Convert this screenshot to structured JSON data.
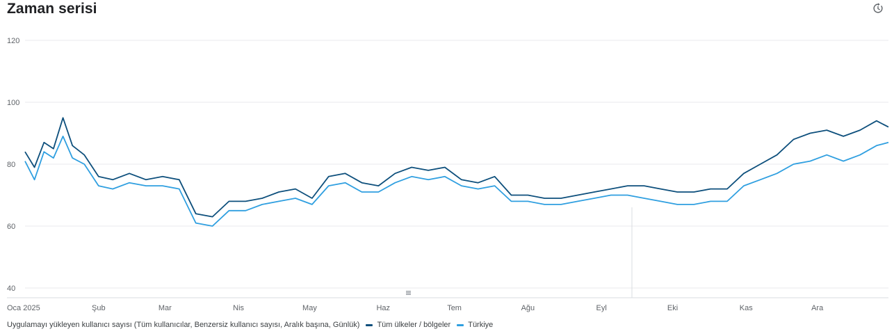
{
  "header": {
    "title": "Zaman serisi",
    "refresh_icon": "refresh-clock-icon"
  },
  "colors": {
    "series_all": "#0d4f7c",
    "series_tr": "#2f9fe0",
    "grid": "#e8eaed",
    "marker": "#dadce0"
  },
  "chart_data": {
    "type": "line",
    "title": "Zaman serisi",
    "metric": "Uygulamayı yükleyen kullanıcı sayısı (Tüm kullanıcılar, Benzersiz kullanıcı sayısı, Aralık başına, Günlük)",
    "x_ticks": [
      "Oca 2025",
      "Şub",
      "Mar",
      "Nis",
      "May",
      "Haz",
      "Tem",
      "Ağu",
      "Eyl",
      "Eki",
      "Kas",
      "Ara"
    ],
    "y_ticks": [
      40,
      60,
      80,
      100,
      120
    ],
    "ylim": [
      40,
      120
    ],
    "xlim": [
      "2025-01-01",
      "2025-12-31"
    ],
    "grid": true,
    "legend_position": "bottom",
    "series": [
      {
        "name": "Tüm ülkeler / bölgeler",
        "color": "#0d4f7c",
        "points": [
          [
            "2025-01-01",
            84
          ],
          [
            "2025-01-05",
            79
          ],
          [
            "2025-01-09",
            87
          ],
          [
            "2025-01-13",
            85
          ],
          [
            "2025-01-17",
            95
          ],
          [
            "2025-01-21",
            86
          ],
          [
            "2025-01-26",
            83
          ],
          [
            "2025-02-01",
            76
          ],
          [
            "2025-02-07",
            75
          ],
          [
            "2025-02-14",
            77
          ],
          [
            "2025-02-21",
            75
          ],
          [
            "2025-02-28",
            76
          ],
          [
            "2025-03-07",
            75
          ],
          [
            "2025-03-14",
            64
          ],
          [
            "2025-03-21",
            63
          ],
          [
            "2025-03-28",
            68
          ],
          [
            "2025-04-04",
            68
          ],
          [
            "2025-04-11",
            69
          ],
          [
            "2025-04-18",
            71
          ],
          [
            "2025-04-25",
            72
          ],
          [
            "2025-05-02",
            69
          ],
          [
            "2025-05-09",
            76
          ],
          [
            "2025-05-16",
            77
          ],
          [
            "2025-05-23",
            74
          ],
          [
            "2025-05-30",
            73
          ],
          [
            "2025-06-06",
            77
          ],
          [
            "2025-06-13",
            79
          ],
          [
            "2025-06-20",
            78
          ],
          [
            "2025-06-27",
            79
          ],
          [
            "2025-07-04",
            75
          ],
          [
            "2025-07-11",
            74
          ],
          [
            "2025-07-18",
            76
          ],
          [
            "2025-07-25",
            70
          ],
          [
            "2025-08-01",
            70
          ],
          [
            "2025-08-08",
            69
          ],
          [
            "2025-08-15",
            69
          ],
          [
            "2025-08-22",
            70
          ],
          [
            "2025-08-29",
            71
          ],
          [
            "2025-09-05",
            72
          ],
          [
            "2025-09-12",
            73
          ],
          [
            "2025-09-19",
            73
          ],
          [
            "2025-09-26",
            72
          ],
          [
            "2025-10-03",
            71
          ],
          [
            "2025-10-10",
            71
          ],
          [
            "2025-10-17",
            72
          ],
          [
            "2025-10-24",
            72
          ],
          [
            "2025-10-31",
            77
          ],
          [
            "2025-11-07",
            80
          ],
          [
            "2025-11-14",
            83
          ],
          [
            "2025-11-21",
            88
          ],
          [
            "2025-11-28",
            90
          ],
          [
            "2025-12-05",
            91
          ],
          [
            "2025-12-12",
            89
          ],
          [
            "2025-12-19",
            91
          ],
          [
            "2025-12-26",
            94
          ],
          [
            "2025-12-31",
            92
          ]
        ]
      },
      {
        "name": "Türkiye",
        "color": "#2f9fe0",
        "points": [
          [
            "2025-01-01",
            81
          ],
          [
            "2025-01-05",
            75
          ],
          [
            "2025-01-09",
            84
          ],
          [
            "2025-01-13",
            82
          ],
          [
            "2025-01-17",
            89
          ],
          [
            "2025-01-21",
            82
          ],
          [
            "2025-01-26",
            80
          ],
          [
            "2025-02-01",
            73
          ],
          [
            "2025-02-07",
            72
          ],
          [
            "2025-02-14",
            74
          ],
          [
            "2025-02-21",
            73
          ],
          [
            "2025-02-28",
            73
          ],
          [
            "2025-03-07",
            72
          ],
          [
            "2025-03-14",
            61
          ],
          [
            "2025-03-21",
            60
          ],
          [
            "2025-03-28",
            65
          ],
          [
            "2025-04-04",
            65
          ],
          [
            "2025-04-11",
            67
          ],
          [
            "2025-04-18",
            68
          ],
          [
            "2025-04-25",
            69
          ],
          [
            "2025-05-02",
            67
          ],
          [
            "2025-05-09",
            73
          ],
          [
            "2025-05-16",
            74
          ],
          [
            "2025-05-23",
            71
          ],
          [
            "2025-05-30",
            71
          ],
          [
            "2025-06-06",
            74
          ],
          [
            "2025-06-13",
            76
          ],
          [
            "2025-06-20",
            75
          ],
          [
            "2025-06-27",
            76
          ],
          [
            "2025-07-04",
            73
          ],
          [
            "2025-07-11",
            72
          ],
          [
            "2025-07-18",
            73
          ],
          [
            "2025-07-25",
            68
          ],
          [
            "2025-08-01",
            68
          ],
          [
            "2025-08-08",
            67
          ],
          [
            "2025-08-15",
            67
          ],
          [
            "2025-08-22",
            68
          ],
          [
            "2025-08-29",
            69
          ],
          [
            "2025-09-05",
            70
          ],
          [
            "2025-09-12",
            70
          ],
          [
            "2025-09-19",
            69
          ],
          [
            "2025-09-26",
            68
          ],
          [
            "2025-10-03",
            67
          ],
          [
            "2025-10-10",
            67
          ],
          [
            "2025-10-17",
            68
          ],
          [
            "2025-10-24",
            68
          ],
          [
            "2025-10-31",
            73
          ],
          [
            "2025-11-07",
            75
          ],
          [
            "2025-11-14",
            77
          ],
          [
            "2025-11-21",
            80
          ],
          [
            "2025-11-28",
            81
          ],
          [
            "2025-12-05",
            83
          ],
          [
            "2025-12-12",
            81
          ],
          [
            "2025-12-19",
            83
          ],
          [
            "2025-12-26",
            86
          ],
          [
            "2025-12-31",
            87
          ]
        ]
      }
    ]
  },
  "legend": {
    "metric_label": "Uygulamayı yükleyen kullanıcı sayısı (Tüm kullanıcılar, Benzersiz kullanıcı sayısı, Aralık başına, Günlük)",
    "items": [
      {
        "label": "Tüm ülkeler / bölgeler",
        "color": "#0d4f7c"
      },
      {
        "label": "Türkiye",
        "color": "#2f9fe0"
      }
    ]
  }
}
